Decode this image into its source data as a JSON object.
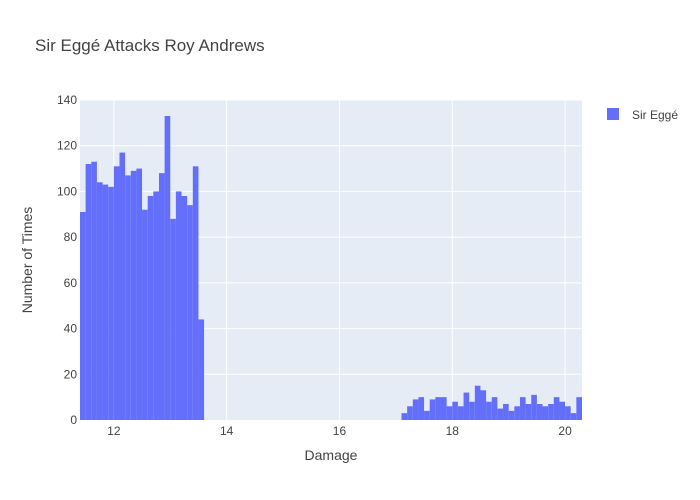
{
  "chart_data": {
    "type": "bar",
    "title": "Sir Eggé Attacks Roy Andrews",
    "xlabel": "Damage",
    "ylabel": "Number of Times",
    "xlim": [
      11.4,
      20.3
    ],
    "ylim": [
      0,
      140
    ],
    "xticks": [
      12,
      14,
      16,
      18,
      20
    ],
    "yticks": [
      0,
      20,
      40,
      60,
      80,
      100,
      120,
      140
    ],
    "bin_width": 0.1,
    "grid": true,
    "legend_position": "top-right",
    "colors": {
      "series": "#636efa",
      "plot_bg": "#e5ecf6",
      "grid": "#ffffff"
    },
    "series": [
      {
        "name": "Sir Eggé",
        "bins": [
          {
            "x": 11.4,
            "y": 91
          },
          {
            "x": 11.5,
            "y": 112
          },
          {
            "x": 11.6,
            "y": 113
          },
          {
            "x": 11.7,
            "y": 104
          },
          {
            "x": 11.8,
            "y": 103
          },
          {
            "x": 11.9,
            "y": 102
          },
          {
            "x": 12.0,
            "y": 111
          },
          {
            "x": 12.1,
            "y": 117
          },
          {
            "x": 12.2,
            "y": 107
          },
          {
            "x": 12.3,
            "y": 109
          },
          {
            "x": 12.4,
            "y": 110
          },
          {
            "x": 12.5,
            "y": 92
          },
          {
            "x": 12.6,
            "y": 98
          },
          {
            "x": 12.7,
            "y": 100
          },
          {
            "x": 12.8,
            "y": 108
          },
          {
            "x": 12.9,
            "y": 133
          },
          {
            "x": 13.0,
            "y": 88
          },
          {
            "x": 13.1,
            "y": 100
          },
          {
            "x": 13.2,
            "y": 98
          },
          {
            "x": 13.3,
            "y": 94
          },
          {
            "x": 13.4,
            "y": 111
          },
          {
            "x": 13.5,
            "y": 44
          },
          {
            "x": 17.1,
            "y": 3
          },
          {
            "x": 17.2,
            "y": 6
          },
          {
            "x": 17.3,
            "y": 9
          },
          {
            "x": 17.4,
            "y": 10
          },
          {
            "x": 17.5,
            "y": 4
          },
          {
            "x": 17.6,
            "y": 9
          },
          {
            "x": 17.7,
            "y": 10
          },
          {
            "x": 17.8,
            "y": 10
          },
          {
            "x": 17.9,
            "y": 6
          },
          {
            "x": 18.0,
            "y": 8
          },
          {
            "x": 18.1,
            "y": 6
          },
          {
            "x": 18.2,
            "y": 12
          },
          {
            "x": 18.3,
            "y": 8
          },
          {
            "x": 18.4,
            "y": 15
          },
          {
            "x": 18.5,
            "y": 13
          },
          {
            "x": 18.6,
            "y": 8
          },
          {
            "x": 18.7,
            "y": 10
          },
          {
            "x": 18.8,
            "y": 5
          },
          {
            "x": 18.9,
            "y": 7
          },
          {
            "x": 19.0,
            "y": 4
          },
          {
            "x": 19.1,
            "y": 6
          },
          {
            "x": 19.2,
            "y": 10
          },
          {
            "x": 19.3,
            "y": 7
          },
          {
            "x": 19.4,
            "y": 11
          },
          {
            "x": 19.5,
            "y": 7
          },
          {
            "x": 19.6,
            "y": 6
          },
          {
            "x": 19.7,
            "y": 7
          },
          {
            "x": 19.8,
            "y": 10
          },
          {
            "x": 19.9,
            "y": 8
          },
          {
            "x": 20.0,
            "y": 6
          },
          {
            "x": 20.1,
            "y": 3
          },
          {
            "x": 20.2,
            "y": 10
          }
        ]
      }
    ]
  }
}
